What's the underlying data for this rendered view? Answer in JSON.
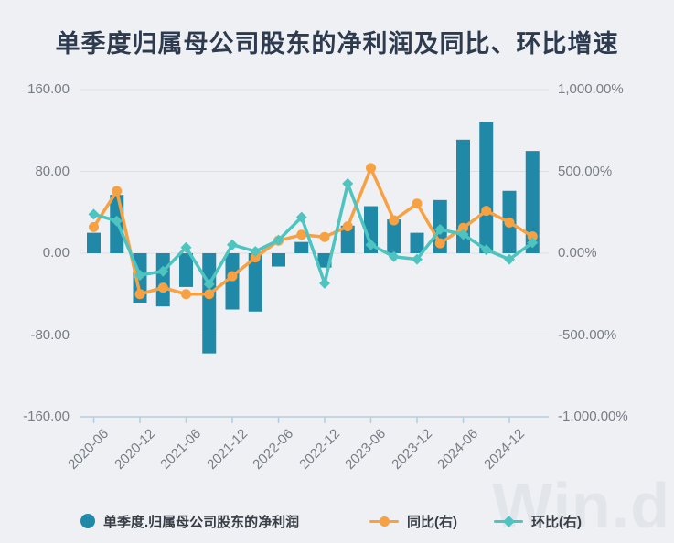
{
  "title": "单季度归属母公司股东的净利润及同比、环比增速",
  "watermark": "Win.d",
  "colors": {
    "background": "#eef0f4",
    "bar": "#2089a8",
    "yoy_line": "#f7a143",
    "qoq_line": "#4ec4c1",
    "grid": "#dcdfe4",
    "axis_line": "#b5cedd",
    "axis_text": "#787d85",
    "title_text": "#2e3b4e",
    "legend_text": "#383d45",
    "watermark_text": "#e2e5ea"
  },
  "left_axis": {
    "ticks": [
      "160.00",
      "80.00",
      "0.00",
      "-80.00",
      "-160.00"
    ],
    "min": -160,
    "max": 160
  },
  "right_axis": {
    "ticks": [
      "1,000.00%",
      "500.00%",
      "0.00%",
      "-500.00%",
      "-1,000.00%"
    ],
    "min": -1000,
    "max": 1000
  },
  "x_axis": {
    "tick_labels": [
      "2020-06",
      "2020-12",
      "2021-06",
      "2021-12",
      "2022-06",
      "2022-12",
      "2023-06",
      "2023-12",
      "2024-06",
      "2024-12"
    ]
  },
  "legend": [
    {
      "label": "单季度.归属母公司股东的净利润",
      "marker": "circle"
    },
    {
      "label": "同比(右)",
      "marker": "line-dot"
    },
    {
      "label": "环比(右)",
      "marker": "line-diamond"
    }
  ],
  "chart_data": {
    "type": "bar",
    "title": "单季度归属母公司股东的净利润及同比、环比增速",
    "grid": true,
    "legend_position": "bottom",
    "categories": [
      "2020-06",
      "2020-09",
      "2020-12",
      "2021-03",
      "2021-06",
      "2021-09",
      "2021-12",
      "2022-03",
      "2022-06",
      "2022-09",
      "2022-12",
      "2023-03",
      "2023-06",
      "2023-09",
      "2023-12",
      "2024-03",
      "2024-06",
      "2024-09",
      "2024-12",
      "2025-03"
    ],
    "series": [
      {
        "name": "单季度.归属母公司股东的净利润",
        "type": "bar",
        "axis": "left",
        "values": [
          20,
          57,
          -49,
          -52,
          -33,
          -98,
          -55,
          -57,
          -13,
          11,
          -14,
          27,
          46,
          33,
          20,
          52,
          111,
          128,
          61,
          100
        ]
      },
      {
        "name": "同比(右)",
        "type": "line",
        "axis": "right",
        "marker": "circle",
        "values": [
          160,
          380,
          -250,
          -210,
          -250,
          -250,
          -140,
          -26,
          77,
          113,
          99,
          164,
          520,
          201,
          303,
          61,
          155,
          259,
          188,
          103
        ]
      },
      {
        "name": "环比(右)",
        "type": "line",
        "axis": "right",
        "marker": "diamond",
        "values": [
          238,
          197,
          -134,
          -110,
          35,
          -190,
          52,
          11,
          80,
          220,
          -184,
          425,
          52,
          -21,
          -37,
          145,
          115,
          21,
          -37,
          65
        ]
      }
    ],
    "left_axis_range": [
      -160,
      160
    ],
    "right_axis_range": [
      -1000,
      1000
    ]
  }
}
